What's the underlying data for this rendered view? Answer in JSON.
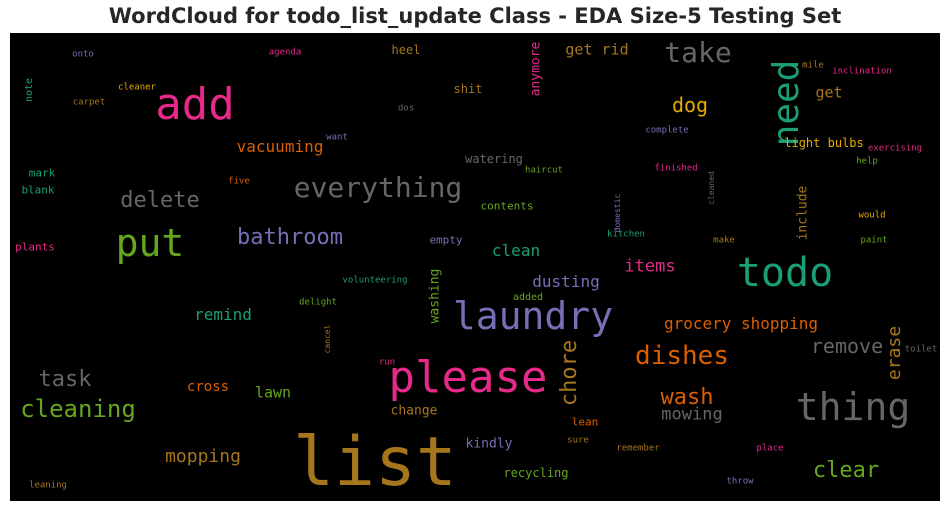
{
  "chart_data": {
    "type": "wordcloud",
    "title": "WordCloud for todo_list_update Class - EDA Size-5 Testing Set",
    "words": [
      {
        "text": "list",
        "size": 68,
        "color": "#a6761d"
      },
      {
        "text": "please",
        "size": 44,
        "color": "#e7298a"
      },
      {
        "text": "add",
        "size": 44,
        "color": "#e7298a"
      },
      {
        "text": "todo",
        "size": 40,
        "color": "#1b9e77"
      },
      {
        "text": "laundry",
        "size": 38,
        "color": "#7570b3"
      },
      {
        "text": "put",
        "size": 38,
        "color": "#66a61e"
      },
      {
        "text": "thing",
        "size": 38,
        "color": "#666666"
      },
      {
        "text": "need",
        "size": 36,
        "color": "#1b9e77",
        "vertical": true
      },
      {
        "text": "everything",
        "size": 28,
        "color": "#666666"
      },
      {
        "text": "take",
        "size": 28,
        "color": "#666666"
      },
      {
        "text": "dishes",
        "size": 26,
        "color": "#d95f02"
      },
      {
        "text": "cleaning",
        "size": 24,
        "color": "#66a61e"
      },
      {
        "text": "chore",
        "size": 22,
        "color": "#a6761d",
        "vertical": true
      },
      {
        "text": "delete",
        "size": 22,
        "color": "#666666"
      },
      {
        "text": "task",
        "size": 22,
        "color": "#666666"
      },
      {
        "text": "wash",
        "size": 22,
        "color": "#d95f02"
      },
      {
        "text": "clear",
        "size": 22,
        "color": "#66a61e"
      },
      {
        "text": "bathroom",
        "size": 22,
        "color": "#7570b3"
      },
      {
        "text": "dog",
        "size": 20,
        "color": "#e6ab02"
      },
      {
        "text": "remove",
        "size": 20,
        "color": "#666666"
      },
      {
        "text": "erase",
        "size": 18,
        "color": "#a6761d",
        "vertical": true
      },
      {
        "text": "mopping",
        "size": 18,
        "color": "#a6761d"
      },
      {
        "text": "mowing",
        "size": 17,
        "color": "#666666"
      },
      {
        "text": "items",
        "size": 17,
        "color": "#e7298a"
      },
      {
        "text": "vacuuming",
        "size": 16,
        "color": "#d95f02"
      },
      {
        "text": "clean",
        "size": 16,
        "color": "#1b9e77"
      },
      {
        "text": "dusting",
        "size": 16,
        "color": "#7570b3"
      },
      {
        "text": "remind",
        "size": 16,
        "color": "#1b9e77"
      },
      {
        "text": "grocery shopping",
        "size": 16,
        "color": "#d95f02"
      },
      {
        "text": "get rid",
        "size": 15,
        "color": "#a6761d"
      },
      {
        "text": "lawn",
        "size": 15,
        "color": "#66a61e"
      },
      {
        "text": "get",
        "size": 15,
        "color": "#a6761d"
      },
      {
        "text": "cross",
        "size": 14,
        "color": "#d95f02"
      },
      {
        "text": "include",
        "size": 13,
        "color": "#a6761d",
        "vertical": true
      },
      {
        "text": "washing",
        "size": 13,
        "color": "#66a61e",
        "vertical": true
      },
      {
        "text": "anymore",
        "size": 13,
        "color": "#e7298a",
        "vertical": true
      },
      {
        "text": "kindly",
        "size": 13,
        "color": "#7570b3"
      },
      {
        "text": "change",
        "size": 13,
        "color": "#a6761d"
      },
      {
        "text": "recycling",
        "size": 12,
        "color": "#66a61e"
      },
      {
        "text": "light bulbs",
        "size": 12,
        "color": "#e6ab02"
      },
      {
        "text": "watering",
        "size": 12,
        "color": "#666666"
      },
      {
        "text": "heel",
        "size": 12,
        "color": "#a6761d"
      },
      {
        "text": "shit",
        "size": 12,
        "color": "#a6761d"
      },
      {
        "text": "mark",
        "size": 11,
        "color": "#1b9e77"
      },
      {
        "text": "blank",
        "size": 11,
        "color": "#1b9e77"
      },
      {
        "text": "plants",
        "size": 11,
        "color": "#e7298a"
      },
      {
        "text": "empty",
        "size": 11,
        "color": "#7570b3"
      },
      {
        "text": "contents",
        "size": 11,
        "color": "#66a61e"
      },
      {
        "text": "lean",
        "size": 11,
        "color": "#d95f02"
      },
      {
        "text": "added",
        "size": 10,
        "color": "#66a61e"
      },
      {
        "text": "note",
        "size": 10,
        "color": "#1b9e77",
        "vertical": true
      },
      {
        "text": "exercising",
        "size": 9,
        "color": "#e7298a"
      },
      {
        "text": "help",
        "size": 9,
        "color": "#66a61e"
      },
      {
        "text": "would",
        "size": 9,
        "color": "#e6ab02"
      },
      {
        "text": "paint",
        "size": 9,
        "color": "#66a61e"
      },
      {
        "text": "make",
        "size": 9,
        "color": "#a6761d"
      },
      {
        "text": "inclination",
        "size": 9,
        "color": "#e7298a"
      },
      {
        "text": "mile",
        "size": 9,
        "color": "#a6761d"
      },
      {
        "text": "complete",
        "size": 9,
        "color": "#7570b3"
      },
      {
        "text": "finished",
        "size": 9,
        "color": "#e7298a"
      },
      {
        "text": "haircut",
        "size": 9,
        "color": "#66a61e"
      },
      {
        "text": "want",
        "size": 9,
        "color": "#7570b3"
      },
      {
        "text": "five",
        "size": 9,
        "color": "#d95f02"
      },
      {
        "text": "cleaner",
        "size": 9,
        "color": "#e6ab02"
      },
      {
        "text": "carpet",
        "size": 9,
        "color": "#a6761d"
      },
      {
        "text": "onto",
        "size": 9,
        "color": "#7570b3"
      },
      {
        "text": "agenda",
        "size": 9,
        "color": "#e7298a"
      },
      {
        "text": "dos",
        "size": 9,
        "color": "#666666"
      },
      {
        "text": "volunteering",
        "size": 9,
        "color": "#1b9e77"
      },
      {
        "text": "delight",
        "size": 9,
        "color": "#66a61e"
      },
      {
        "text": "cancel",
        "size": 8,
        "color": "#a6761d",
        "vertical": true
      },
      {
        "text": "run",
        "size": 9,
        "color": "#e7298a"
      },
      {
        "text": "kitchen",
        "size": 9,
        "color": "#1b9e77"
      },
      {
        "text": "domestic",
        "size": 8,
        "color": "#7570b3",
        "vertical": true
      },
      {
        "text": "cleaned",
        "size": 8,
        "color": "#666666",
        "vertical": true
      },
      {
        "text": "toilet",
        "size": 9,
        "color": "#666666"
      },
      {
        "text": "sure",
        "size": 9,
        "color": "#a6761d"
      },
      {
        "text": "remember",
        "size": 9,
        "color": "#a6761d"
      },
      {
        "text": "place",
        "size": 9,
        "color": "#e7298a"
      },
      {
        "text": "throw",
        "size": 9,
        "color": "#7570b3"
      },
      {
        "text": "leaning",
        "size": 9,
        "color": "#a6761d"
      }
    ]
  }
}
